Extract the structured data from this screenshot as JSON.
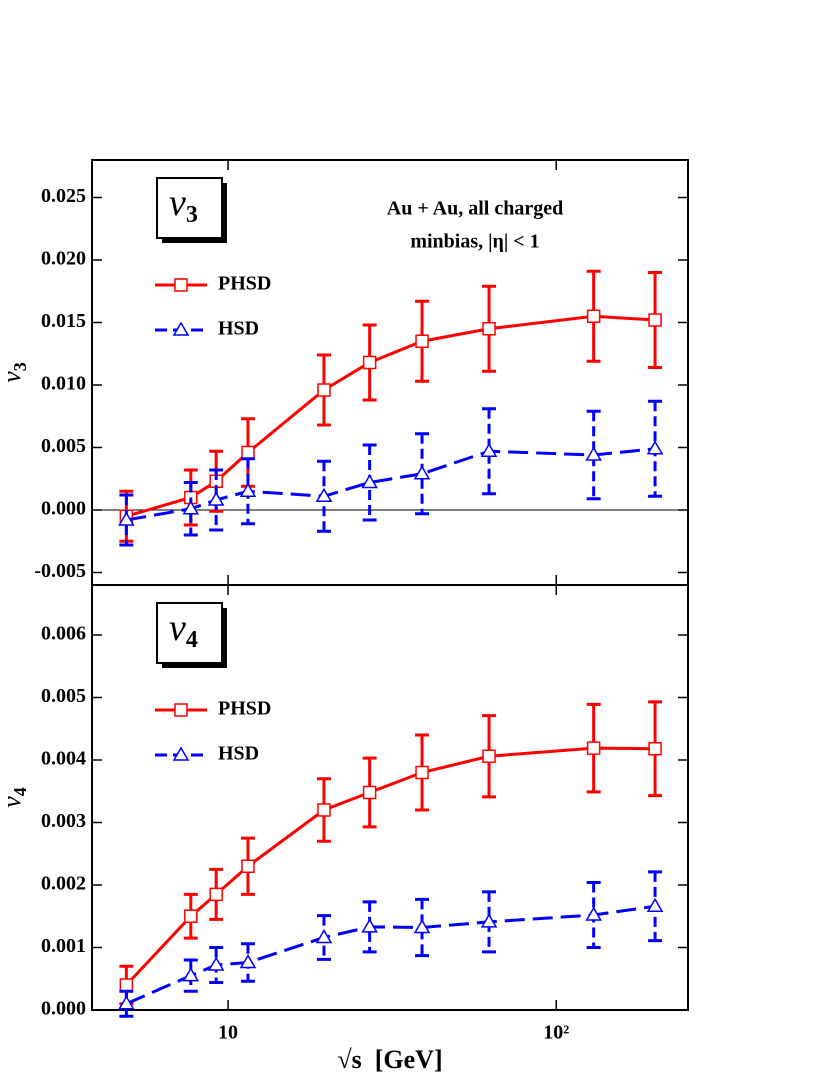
{
  "chart_data": [
    {
      "type": "line",
      "panel_label": {
        "text": "v",
        "sub": "3"
      },
      "ylabel": {
        "text": "v",
        "sub": "3"
      },
      "annotations": [
        "Au + Au, all charged",
        "minbias, |η| < 1"
      ],
      "xscale": "log",
      "xlim": [
        3.85,
        252
      ],
      "x": [
        4.9,
        7.7,
        9.2,
        11.5,
        19.6,
        27,
        39,
        62.4,
        130,
        200
      ],
      "ylim": [
        -0.006,
        0.028
      ],
      "yticks": [
        {
          "value": -0.005,
          "label": "-0.005"
        },
        {
          "value": 0,
          "label": "0.000"
        },
        {
          "value": 0.005,
          "label": "0.005"
        },
        {
          "value": 0.01,
          "label": "0.010"
        },
        {
          "value": 0.015,
          "label": "0.015"
        },
        {
          "value": 0.02,
          "label": "0.020"
        },
        {
          "value": 0.025,
          "label": "0.025"
        }
      ],
      "zero_line": true,
      "legend": "upper left",
      "series": [
        {
          "name": "PHSD",
          "color": "#ff0000",
          "marker": "square",
          "dash": "solid",
          "values": [
            -0.0005,
            0.001,
            0.0023,
            0.0046,
            0.0096,
            0.0118,
            0.0135,
            0.0145,
            0.0155,
            0.0152
          ],
          "errors": [
            0.002,
            0.0022,
            0.0024,
            0.0027,
            0.0028,
            0.003,
            0.0032,
            0.0034,
            0.0036,
            0.0038
          ]
        },
        {
          "name": "HSD",
          "color": "#0000ff",
          "marker": "triangle",
          "dash": "dashed",
          "values": [
            -0.0008,
            0.0001,
            0.0008,
            0.0015,
            0.0011,
            0.0022,
            0.0029,
            0.0047,
            0.0044,
            0.0049
          ],
          "errors": [
            0.002,
            0.0021,
            0.0024,
            0.0026,
            0.0028,
            0.003,
            0.0032,
            0.0034,
            0.0035,
            0.0038
          ]
        }
      ]
    },
    {
      "type": "line",
      "panel_label": {
        "text": "v",
        "sub": "4"
      },
      "ylabel": {
        "text": "v",
        "sub": "4"
      },
      "xlabel": "√s  [GeV]",
      "xscale": "log",
      "xlim": [
        3.85,
        252
      ],
      "x": [
        4.9,
        7.7,
        9.2,
        11.5,
        19.6,
        27,
        39,
        62.4,
        130,
        200
      ],
      "xticks": [
        10,
        {
          "value": 100,
          "label": "10²"
        }
      ],
      "ylim": [
        0,
        0.0068
      ],
      "yticks": [
        {
          "value": 0,
          "label": "0.000"
        },
        {
          "value": 0.001,
          "label": "0.001"
        },
        {
          "value": 0.002,
          "label": "0.002"
        },
        {
          "value": 0.003,
          "label": "0.003"
        },
        {
          "value": 0.004,
          "label": "0.004"
        },
        {
          "value": 0.005,
          "label": "0.005"
        },
        {
          "value": 0.006,
          "label": "0.006"
        }
      ],
      "legend": "upper left",
      "series": [
        {
          "name": "PHSD",
          "color": "#ff0000",
          "marker": "square",
          "dash": "solid",
          "values": [
            0.0004,
            0.0015,
            0.00185,
            0.0023,
            0.0032,
            0.00348,
            0.0038,
            0.00406,
            0.00419,
            0.00418
          ],
          "errors": [
            0.0003,
            0.00035,
            0.0004,
            0.00045,
            0.0005,
            0.00055,
            0.0006,
            0.00065,
            0.0007,
            0.00075
          ]
        },
        {
          "name": "HSD",
          "color": "#0000ff",
          "marker": "triangle",
          "dash": "dashed",
          "values": [
            0.0001,
            0.00055,
            0.00072,
            0.00076,
            0.00116,
            0.00133,
            0.00132,
            0.00141,
            0.00152,
            0.00166
          ],
          "errors": [
            0.0002,
            0.00025,
            0.00028,
            0.0003,
            0.00035,
            0.0004,
            0.00045,
            0.00048,
            0.00052,
            0.00055
          ]
        }
      ]
    }
  ]
}
